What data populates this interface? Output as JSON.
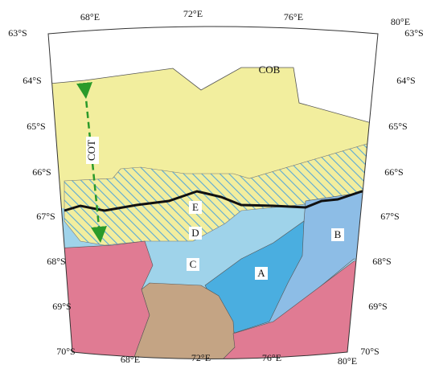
{
  "map": {
    "top_lon_labels": [
      "68°E",
      "72°E",
      "76°E",
      "80°E"
    ],
    "bottom_lon_labels": [
      "68°E",
      "72°E",
      "76°E",
      "80°E"
    ],
    "left_lat_labels": [
      "63°S",
      "64°S",
      "65°S",
      "66°S",
      "67°S",
      "68°S",
      "69°S",
      "70°S"
    ],
    "right_lat_labels": [
      "63°S",
      "64°S",
      "65°S",
      "66°S",
      "67°S",
      "68°S",
      "69°S",
      "70°S"
    ],
    "boundary_labels": {
      "cob": "COB",
      "cot": "COT"
    },
    "regions": [
      "A",
      "B",
      "C",
      "D",
      "E"
    ]
  }
}
